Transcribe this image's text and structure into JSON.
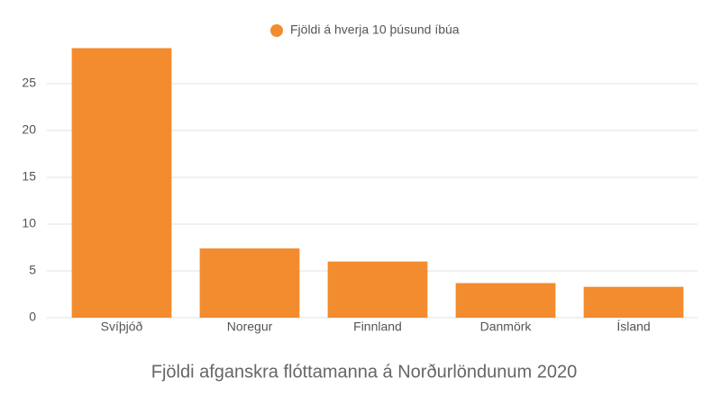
{
  "chart_data": {
    "type": "bar",
    "title": "Fjöldi afganskra flóttamanna á Norðurlöndunum 2020",
    "categories": [
      "Svíþjóð",
      "Noregur",
      "Finnland",
      "Danmörk",
      "Ísland"
    ],
    "series": [
      {
        "name": "Fjöldi á hverja 10 þúsund íbúa",
        "color": "#f28c2e",
        "values": [
          28.8,
          7.4,
          6.0,
          3.7,
          3.3
        ]
      }
    ],
    "ylim": [
      0,
      30
    ],
    "yticks": [
      0,
      5,
      10,
      15,
      20,
      25
    ],
    "grid": true,
    "legend": "top"
  }
}
